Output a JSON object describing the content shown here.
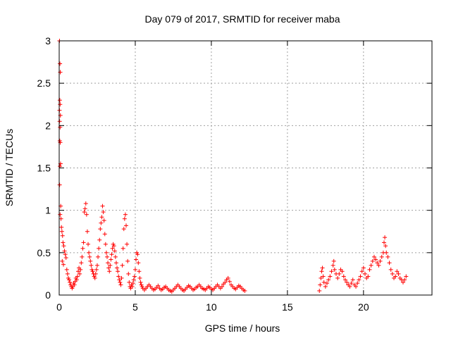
{
  "chart_data": {
    "type": "scatter",
    "title": "Day 079 of 2017, SRMTID for receiver maba",
    "xlabel": "GPS time / hours",
    "ylabel": "SRMTID / TECUs",
    "xlim": [
      0,
      24.5
    ],
    "ylim": [
      0,
      3
    ],
    "xticks": [
      0,
      5,
      10,
      15,
      20
    ],
    "xtick_labels": [
      "0",
      "5",
      "10",
      "15",
      "20"
    ],
    "yticks": [
      0,
      0.5,
      1,
      1.5,
      2,
      2.5,
      3
    ],
    "ytick_labels": [
      "0",
      "0.5",
      "1",
      "1.5",
      "2",
      "2.5",
      "3"
    ],
    "grid": true,
    "marker": "+",
    "color": "#ff0000",
    "series": [
      {
        "name": "SRMTID",
        "points": [
          [
            0.02,
            3.0
          ],
          [
            0.05,
            2.73
          ],
          [
            0.07,
            2.63
          ],
          [
            0.04,
            2.3
          ],
          [
            0.06,
            2.25
          ],
          [
            0.02,
            2.18
          ],
          [
            0.08,
            2.12
          ],
          [
            0.03,
            2.05
          ],
          [
            0.06,
            1.98
          ],
          [
            0.04,
            1.82
          ],
          [
            0.07,
            1.8
          ],
          [
            0.09,
            1.55
          ],
          [
            0.05,
            1.52
          ],
          [
            0.03,
            1.3
          ],
          [
            0.1,
            1.05
          ],
          [
            0.06,
            0.95
          ],
          [
            0.12,
            0.9
          ],
          [
            0.15,
            0.8
          ],
          [
            0.18,
            0.75
          ],
          [
            0.22,
            0.7
          ],
          [
            0.25,
            0.62
          ],
          [
            0.3,
            0.58
          ],
          [
            0.35,
            0.52
          ],
          [
            0.4,
            0.48
          ],
          [
            0.45,
            0.44
          ],
          [
            0.2,
            0.4
          ],
          [
            0.28,
            0.36
          ],
          [
            0.5,
            0.3
          ],
          [
            0.55,
            0.25
          ],
          [
            0.6,
            0.2
          ],
          [
            0.65,
            0.18
          ],
          [
            0.7,
            0.15
          ],
          [
            0.75,
            0.12
          ],
          [
            0.8,
            0.1
          ],
          [
            0.85,
            0.08
          ],
          [
            0.9,
            0.1
          ],
          [
            0.95,
            0.14
          ],
          [
            1.0,
            0.12
          ],
          [
            1.05,
            0.16
          ],
          [
            1.1,
            0.2
          ],
          [
            1.15,
            0.18
          ],
          [
            1.2,
            0.22
          ],
          [
            1.25,
            0.28
          ],
          [
            1.3,
            0.32
          ],
          [
            1.35,
            0.25
          ],
          [
            1.4,
            0.3
          ],
          [
            1.45,
            0.38
          ],
          [
            1.5,
            0.45
          ],
          [
            1.55,
            0.55
          ],
          [
            1.6,
            0.62
          ],
          [
            1.65,
            0.98
          ],
          [
            1.7,
            1.02
          ],
          [
            1.75,
            1.08
          ],
          [
            1.8,
            0.95
          ],
          [
            1.85,
            0.75
          ],
          [
            1.9,
            0.6
          ],
          [
            1.95,
            0.5
          ],
          [
            2.0,
            0.45
          ],
          [
            2.05,
            0.4
          ],
          [
            2.1,
            0.35
          ],
          [
            2.15,
            0.3
          ],
          [
            2.2,
            0.28
          ],
          [
            2.25,
            0.25
          ],
          [
            2.3,
            0.22
          ],
          [
            2.35,
            0.2
          ],
          [
            2.4,
            0.25
          ],
          [
            2.45,
            0.3
          ],
          [
            2.5,
            0.35
          ],
          [
            2.55,
            0.45
          ],
          [
            2.6,
            0.55
          ],
          [
            2.65,
            0.65
          ],
          [
            2.7,
            0.78
          ],
          [
            2.75,
            0.85
          ],
          [
            2.8,
            0.92
          ],
          [
            2.85,
            1.05
          ],
          [
            2.9,
            0.98
          ],
          [
            2.95,
            0.88
          ],
          [
            3.0,
            0.72
          ],
          [
            3.05,
            0.6
          ],
          [
            3.1,
            0.5
          ],
          [
            3.15,
            0.45
          ],
          [
            3.2,
            0.38
          ],
          [
            3.25,
            0.32
          ],
          [
            3.3,
            0.28
          ],
          [
            3.35,
            0.35
          ],
          [
            3.4,
            0.42
          ],
          [
            3.45,
            0.48
          ],
          [
            3.5,
            0.55
          ],
          [
            3.55,
            0.6
          ],
          [
            3.6,
            0.58
          ],
          [
            3.65,
            0.52
          ],
          [
            3.7,
            0.45
          ],
          [
            3.75,
            0.38
          ],
          [
            3.8,
            0.32
          ],
          [
            3.85,
            0.28
          ],
          [
            3.9,
            0.22
          ],
          [
            3.95,
            0.18
          ],
          [
            4.0,
            0.15
          ],
          [
            4.05,
            0.12
          ],
          [
            4.1,
            0.2
          ],
          [
            4.15,
            0.35
          ],
          [
            4.2,
            0.55
          ],
          [
            4.25,
            0.78
          ],
          [
            4.3,
            0.9
          ],
          [
            4.35,
            0.95
          ],
          [
            4.4,
            0.82
          ],
          [
            4.45,
            0.6
          ],
          [
            4.5,
            0.4
          ],
          [
            4.55,
            0.25
          ],
          [
            4.6,
            0.15
          ],
          [
            4.65,
            0.1
          ],
          [
            4.7,
            0.08
          ],
          [
            4.75,
            0.12
          ],
          [
            4.8,
            0.1
          ],
          [
            4.85,
            0.14
          ],
          [
            4.9,
            0.18
          ],
          [
            4.95,
            0.22
          ],
          [
            5.0,
            0.3
          ],
          [
            5.05,
            0.42
          ],
          [
            5.1,
            0.5
          ],
          [
            5.15,
            0.48
          ],
          [
            5.2,
            0.38
          ],
          [
            5.25,
            0.28
          ],
          [
            5.3,
            0.2
          ],
          [
            5.35,
            0.15
          ],
          [
            5.4,
            0.12
          ],
          [
            5.45,
            0.1
          ],
          [
            5.5,
            0.08
          ],
          [
            5.6,
            0.06
          ],
          [
            5.7,
            0.08
          ],
          [
            5.8,
            0.1
          ],
          [
            5.9,
            0.12
          ],
          [
            6.0,
            0.1
          ],
          [
            6.1,
            0.08
          ],
          [
            6.2,
            0.06
          ],
          [
            6.3,
            0.07
          ],
          [
            6.4,
            0.09
          ],
          [
            6.5,
            0.11
          ],
          [
            6.6,
            0.08
          ],
          [
            6.7,
            0.06
          ],
          [
            6.8,
            0.07
          ],
          [
            6.9,
            0.09
          ],
          [
            7.0,
            0.1
          ],
          [
            7.1,
            0.08
          ],
          [
            7.2,
            0.06
          ],
          [
            7.3,
            0.05
          ],
          [
            7.4,
            0.04
          ],
          [
            7.5,
            0.06
          ],
          [
            7.6,
            0.08
          ],
          [
            7.7,
            0.1
          ],
          [
            7.8,
            0.12
          ],
          [
            7.9,
            0.1
          ],
          [
            8.0,
            0.08
          ],
          [
            8.1,
            0.06
          ],
          [
            8.2,
            0.05
          ],
          [
            8.3,
            0.07
          ],
          [
            8.4,
            0.09
          ],
          [
            8.5,
            0.11
          ],
          [
            8.6,
            0.1
          ],
          [
            8.7,
            0.08
          ],
          [
            8.8,
            0.06
          ],
          [
            8.9,
            0.07
          ],
          [
            9.0,
            0.09
          ],
          [
            9.1,
            0.1
          ],
          [
            9.2,
            0.12
          ],
          [
            9.3,
            0.1
          ],
          [
            9.4,
            0.08
          ],
          [
            9.5,
            0.07
          ],
          [
            9.6,
            0.06
          ],
          [
            9.7,
            0.08
          ],
          [
            9.8,
            0.1
          ],
          [
            9.9,
            0.09
          ],
          [
            10.0,
            0.07
          ],
          [
            10.1,
            0.06
          ],
          [
            10.2,
            0.08
          ],
          [
            10.3,
            0.1
          ],
          [
            10.4,
            0.12
          ],
          [
            10.5,
            0.1
          ],
          [
            10.6,
            0.08
          ],
          [
            10.7,
            0.1
          ],
          [
            10.8,
            0.13
          ],
          [
            10.9,
            0.15
          ],
          [
            11.0,
            0.18
          ],
          [
            11.1,
            0.2
          ],
          [
            11.2,
            0.16
          ],
          [
            11.3,
            0.12
          ],
          [
            11.4,
            0.1
          ],
          [
            11.5,
            0.08
          ],
          [
            11.6,
            0.07
          ],
          [
            11.7,
            0.09
          ],
          [
            11.8,
            0.11
          ],
          [
            11.9,
            0.1
          ],
          [
            12.0,
            0.08
          ],
          [
            12.1,
            0.06
          ],
          [
            12.2,
            0.05
          ],
          [
            17.1,
            0.05
          ],
          [
            17.15,
            0.12
          ],
          [
            17.2,
            0.2
          ],
          [
            17.25,
            0.28
          ],
          [
            17.3,
            0.32
          ],
          [
            17.35,
            0.22
          ],
          [
            17.4,
            0.15
          ],
          [
            17.5,
            0.1
          ],
          [
            17.6,
            0.14
          ],
          [
            17.7,
            0.18
          ],
          [
            17.8,
            0.22
          ],
          [
            17.9,
            0.28
          ],
          [
            18.0,
            0.35
          ],
          [
            18.05,
            0.4
          ],
          [
            18.1,
            0.3
          ],
          [
            18.2,
            0.25
          ],
          [
            18.3,
            0.2
          ],
          [
            18.4,
            0.25
          ],
          [
            18.5,
            0.3
          ],
          [
            18.6,
            0.28
          ],
          [
            18.7,
            0.22
          ],
          [
            18.8,
            0.18
          ],
          [
            18.9,
            0.15
          ],
          [
            19.0,
            0.12
          ],
          [
            19.1,
            0.1
          ],
          [
            19.2,
            0.14
          ],
          [
            19.3,
            0.18
          ],
          [
            19.4,
            0.12
          ],
          [
            19.5,
            0.1
          ],
          [
            19.6,
            0.14
          ],
          [
            19.7,
            0.18
          ],
          [
            19.8,
            0.22
          ],
          [
            19.9,
            0.28
          ],
          [
            20.0,
            0.32
          ],
          [
            20.1,
            0.25
          ],
          [
            20.2,
            0.2
          ],
          [
            20.3,
            0.22
          ],
          [
            20.4,
            0.3
          ],
          [
            20.5,
            0.35
          ],
          [
            20.6,
            0.4
          ],
          [
            20.7,
            0.45
          ],
          [
            20.8,
            0.42
          ],
          [
            20.9,
            0.38
          ],
          [
            21.0,
            0.35
          ],
          [
            21.1,
            0.4
          ],
          [
            21.2,
            0.45
          ],
          [
            21.3,
            0.5
          ],
          [
            21.35,
            0.62
          ],
          [
            21.4,
            0.68
          ],
          [
            21.45,
            0.58
          ],
          [
            21.5,
            0.5
          ],
          [
            21.6,
            0.45
          ],
          [
            21.7,
            0.38
          ],
          [
            21.8,
            0.3
          ],
          [
            21.9,
            0.25
          ],
          [
            22.0,
            0.2
          ],
          [
            22.1,
            0.22
          ],
          [
            22.2,
            0.28
          ],
          [
            22.3,
            0.25
          ],
          [
            22.4,
            0.2
          ],
          [
            22.5,
            0.18
          ],
          [
            22.6,
            0.15
          ],
          [
            22.7,
            0.18
          ],
          [
            22.8,
            0.22
          ]
        ]
      }
    ]
  }
}
